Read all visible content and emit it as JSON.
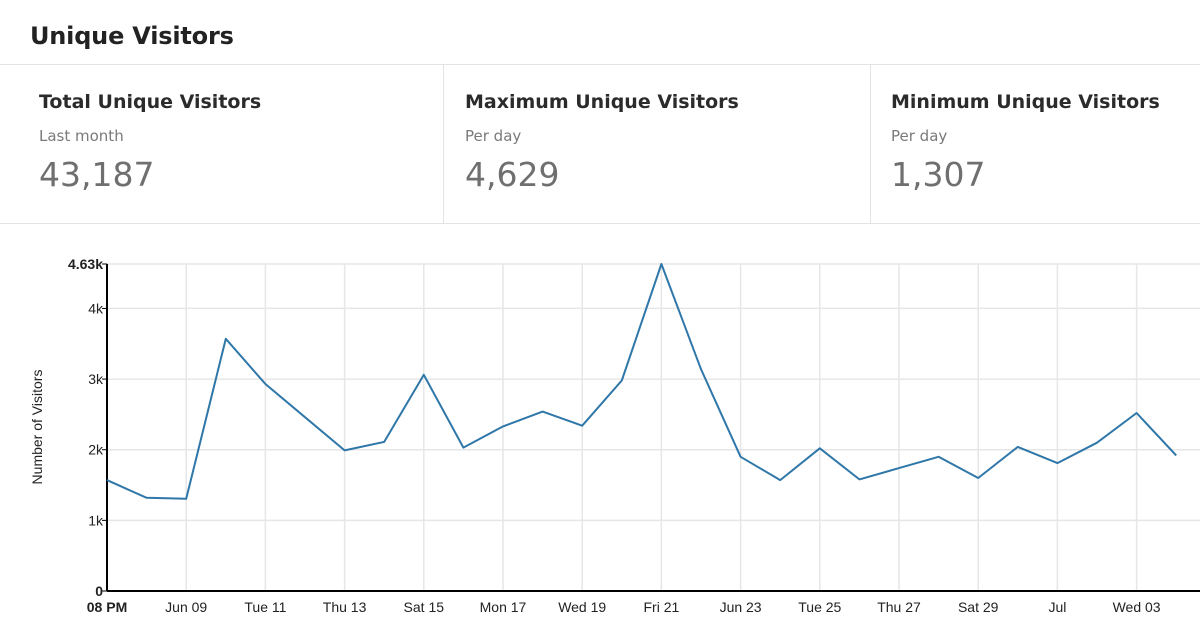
{
  "header": {
    "title": "Unique Visitors"
  },
  "stats": [
    {
      "title": "Total Unique Visitors",
      "subtitle": "Last month",
      "value": "43,187"
    },
    {
      "title": "Maximum Unique Visitors",
      "subtitle": "Per day",
      "value": "4,629"
    },
    {
      "title": "Minimum Unique Visitors",
      "subtitle": "Per day",
      "value": "1,307"
    }
  ],
  "colors": {
    "line": "#2f77a8",
    "grid": "#e6e6e6",
    "axis": "#000000"
  },
  "chart_data": {
    "type": "line",
    "title": "",
    "xlabel": "",
    "ylabel": "Number of Visitors",
    "ylim": [
      0,
      4629
    ],
    "y_ticks": [
      {
        "value": 0,
        "label": "0",
        "bold": true
      },
      {
        "value": 1000,
        "label": "1k"
      },
      {
        "value": 2000,
        "label": "2k"
      },
      {
        "value": 3000,
        "label": "3k"
      },
      {
        "value": 4000,
        "label": "4k"
      },
      {
        "value": 4629,
        "label": "4.63k",
        "bold": true
      }
    ],
    "x_ticks": [
      {
        "label": "08 PM",
        "bold": true
      },
      {
        "label": "Jun 09"
      },
      {
        "label": "Tue 11"
      },
      {
        "label": "Thu 13"
      },
      {
        "label": "Sat 15"
      },
      {
        "label": "Mon 17"
      },
      {
        "label": "Wed 19"
      },
      {
        "label": "Fri 21"
      },
      {
        "label": "Jun 23"
      },
      {
        "label": "Tue 25"
      },
      {
        "label": "Thu 27"
      },
      {
        "label": "Sat 29"
      },
      {
        "label": "Jul"
      },
      {
        "label": "Wed 03"
      }
    ],
    "grid": true,
    "series": [
      {
        "x": [
          "Jun 07",
          "Jun 08",
          "Jun 09",
          "Jun 10",
          "Jun 11",
          "Jun 12",
          "Jun 13",
          "Jun 14",
          "Jun 15",
          "Jun 16",
          "Jun 17",
          "Jun 18",
          "Jun 19",
          "Jun 20",
          "Jun 21",
          "Jun 22",
          "Jun 23",
          "Jun 24",
          "Jun 25",
          "Jun 26",
          "Jun 27",
          "Jun 28",
          "Jun 29",
          "Jun 30",
          "Jul 01",
          "Jul 02",
          "Jul 03",
          "Jul 04"
        ],
        "values": [
          1570,
          1320,
          1307,
          3570,
          2930,
          2460,
          1990,
          2110,
          3060,
          2030,
          2330,
          2540,
          2340,
          2980,
          4629,
          3140,
          1900,
          1570,
          2020,
          1580,
          1740,
          1900,
          1600,
          2040,
          1810,
          2100,
          2520,
          1920
        ]
      }
    ]
  }
}
